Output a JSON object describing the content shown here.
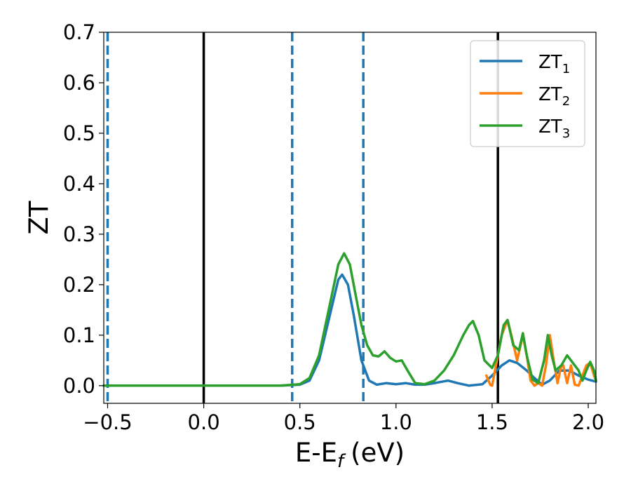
{
  "chart_data": {
    "type": "line",
    "xlabel": "E-E",
    "xlabel_sub": "f",
    "xlabel_unit": "(eV)",
    "ylabel": "ZT",
    "xlim": [
      -0.52,
      2.04
    ],
    "ylim": [
      -0.035,
      0.7
    ],
    "xticks": [
      -0.5,
      0.0,
      0.5,
      1.0,
      1.5,
      2.0
    ],
    "xtick_labels": [
      "−0.5",
      "0.0",
      "0.5",
      "1.0",
      "1.5",
      "2.0"
    ],
    "yticks": [
      0.0,
      0.1,
      0.2,
      0.3,
      0.4,
      0.5,
      0.6,
      0.7
    ],
    "ytick_labels": [
      "0.0",
      "0.1",
      "0.2",
      "0.3",
      "0.4",
      "0.5",
      "0.6",
      "0.7"
    ],
    "grid": false,
    "legend_position": "top-right",
    "vlines": [
      {
        "x": -0.5,
        "style": "dashed",
        "color": "#1f77b4"
      },
      {
        "x": 0.0,
        "style": "solid",
        "color": "#000000"
      },
      {
        "x": 0.46,
        "style": "dashed",
        "color": "#1f77b4"
      },
      {
        "x": 0.83,
        "style": "dashed",
        "color": "#1f77b4"
      },
      {
        "x": 1.53,
        "style": "solid",
        "color": "#000000"
      }
    ],
    "series": [
      {
        "name": "ZT",
        "subscript": "1",
        "color": "#1f77b4",
        "points": [
          [
            -0.52,
            0.0
          ],
          [
            0.4,
            0.0
          ],
          [
            0.5,
            0.002
          ],
          [
            0.55,
            0.01
          ],
          [
            0.6,
            0.05
          ],
          [
            0.65,
            0.13
          ],
          [
            0.7,
            0.21
          ],
          [
            0.72,
            0.22
          ],
          [
            0.75,
            0.2
          ],
          [
            0.78,
            0.14
          ],
          [
            0.82,
            0.05
          ],
          [
            0.86,
            0.01
          ],
          [
            0.9,
            0.002
          ],
          [
            0.95,
            0.005
          ],
          [
            1.0,
            0.003
          ],
          [
            1.05,
            0.005
          ],
          [
            1.1,
            0.002
          ],
          [
            1.15,
            0.002
          ],
          [
            1.2,
            0.005
          ],
          [
            1.27,
            0.01
          ],
          [
            1.32,
            0.005
          ],
          [
            1.38,
            0.0
          ],
          [
            1.45,
            0.003
          ],
          [
            1.5,
            0.02
          ],
          [
            1.55,
            0.04
          ],
          [
            1.59,
            0.05
          ],
          [
            1.63,
            0.045
          ],
          [
            1.68,
            0.03
          ],
          [
            1.72,
            0.015
          ],
          [
            1.76,
            0.002
          ],
          [
            1.8,
            0.01
          ],
          [
            1.85,
            0.03
          ],
          [
            1.9,
            0.03
          ],
          [
            1.95,
            0.02
          ],
          [
            2.0,
            0.012
          ],
          [
            2.04,
            0.008
          ]
        ]
      },
      {
        "name": "ZT",
        "subscript": "2",
        "color": "#ff7f0e",
        "points": [
          [
            1.47,
            0.02
          ],
          [
            1.49,
            0.002
          ],
          [
            1.5,
            0.0
          ],
          [
            1.52,
            0.04
          ],
          [
            1.55,
            0.1
          ],
          [
            1.58,
            0.13
          ],
          [
            1.6,
            0.1
          ],
          [
            1.63,
            0.05
          ],
          [
            1.66,
            0.1
          ],
          [
            1.68,
            0.06
          ],
          [
            1.7,
            0.01
          ],
          [
            1.72,
            0.0
          ],
          [
            1.74,
            0.005
          ],
          [
            1.76,
            0.0
          ],
          [
            1.78,
            0.04
          ],
          [
            1.8,
            0.1
          ],
          [
            1.82,
            0.05
          ],
          [
            1.84,
            0.005
          ],
          [
            1.86,
            0.04
          ],
          [
            1.87,
            0.04
          ],
          [
            1.89,
            0.005
          ],
          [
            1.91,
            0.04
          ],
          [
            1.93,
            0.002
          ],
          [
            1.95,
            0.0
          ],
          [
            1.97,
            0.02
          ],
          [
            1.99,
            0.04
          ],
          [
            2.01,
            0.045
          ],
          [
            2.03,
            0.02
          ],
          [
            2.04,
            0.01
          ]
        ]
      },
      {
        "name": "ZT",
        "subscript": "3",
        "color": "#2ca02c",
        "points": [
          [
            -0.52,
            0.0
          ],
          [
            0.4,
            0.0
          ],
          [
            0.5,
            0.003
          ],
          [
            0.55,
            0.015
          ],
          [
            0.6,
            0.06
          ],
          [
            0.65,
            0.15
          ],
          [
            0.7,
            0.24
          ],
          [
            0.73,
            0.262
          ],
          [
            0.76,
            0.24
          ],
          [
            0.79,
            0.18
          ],
          [
            0.82,
            0.12
          ],
          [
            0.85,
            0.08
          ],
          [
            0.88,
            0.06
          ],
          [
            0.91,
            0.058
          ],
          [
            0.94,
            0.068
          ],
          [
            0.97,
            0.055
          ],
          [
            1.0,
            0.048
          ],
          [
            1.03,
            0.05
          ],
          [
            1.06,
            0.03
          ],
          [
            1.1,
            0.005
          ],
          [
            1.15,
            0.003
          ],
          [
            1.2,
            0.01
          ],
          [
            1.25,
            0.03
          ],
          [
            1.3,
            0.06
          ],
          [
            1.35,
            0.1
          ],
          [
            1.38,
            0.12
          ],
          [
            1.4,
            0.128
          ],
          [
            1.43,
            0.1
          ],
          [
            1.46,
            0.05
          ],
          [
            1.5,
            0.035
          ],
          [
            1.53,
            0.06
          ],
          [
            1.56,
            0.12
          ],
          [
            1.58,
            0.13
          ],
          [
            1.61,
            0.08
          ],
          [
            1.64,
            0.07
          ],
          [
            1.66,
            0.104
          ],
          [
            1.68,
            0.06
          ],
          [
            1.71,
            0.012
          ],
          [
            1.74,
            0.005
          ],
          [
            1.77,
            0.05
          ],
          [
            1.79,
            0.1
          ],
          [
            1.81,
            0.06
          ],
          [
            1.83,
            0.03
          ],
          [
            1.86,
            0.04
          ],
          [
            1.89,
            0.06
          ],
          [
            1.92,
            0.045
          ],
          [
            1.95,
            0.03
          ],
          [
            1.97,
            0.01
          ],
          [
            1.99,
            0.03
          ],
          [
            2.01,
            0.047
          ],
          [
            2.03,
            0.03
          ],
          [
            2.04,
            0.01
          ]
        ]
      }
    ]
  }
}
